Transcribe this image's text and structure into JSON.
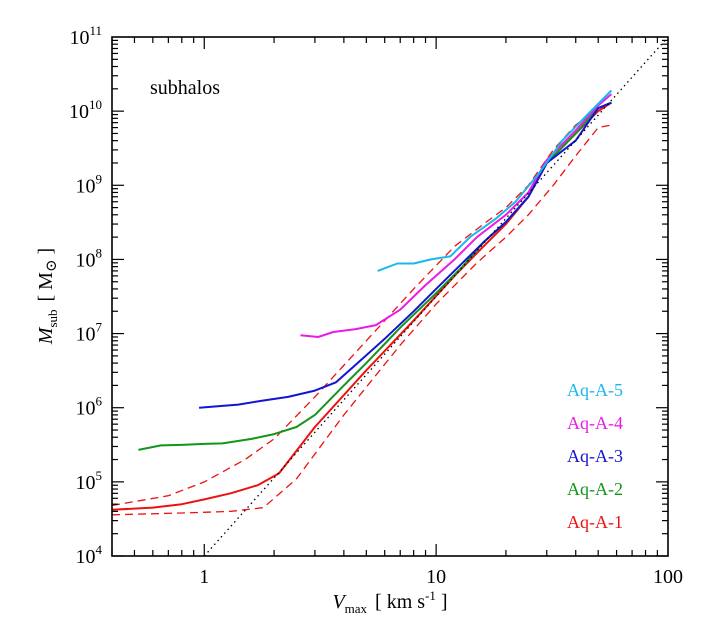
{
  "chart_data": {
    "type": "line",
    "annotation": "subhalos",
    "xlabel": {
      "main": "V",
      "sub": "max",
      "units": "[ km s",
      "units_sup": "-1",
      "units_end": " ]"
    },
    "ylabel": {
      "main": "M",
      "sub": "sub",
      "units": "[ M",
      "units_sym": "⊙",
      "units_end": " ]"
    },
    "xscale": "log",
    "yscale": "log",
    "xlim": [
      0.4,
      100
    ],
    "ylim": [
      10000,
      100000000000
    ],
    "x_ticks": [
      {
        "value": 1,
        "label": "1"
      },
      {
        "value": 10,
        "label": "10"
      },
      {
        "value": 100,
        "label": "100"
      }
    ],
    "y_ticks": [
      {
        "value": 10000,
        "base": "10",
        "exp": "4"
      },
      {
        "value": 100000,
        "base": "10",
        "exp": "5"
      },
      {
        "value": 1000000,
        "base": "10",
        "exp": "6"
      },
      {
        "value": 10000000,
        "base": "10",
        "exp": "7"
      },
      {
        "value": 100000000,
        "base": "10",
        "exp": "8"
      },
      {
        "value": 1000000000,
        "base": "10",
        "exp": "9"
      },
      {
        "value": 10000000000,
        "base": "10",
        "exp": "10"
      },
      {
        "value": 100000000000,
        "base": "10",
        "exp": "11"
      }
    ],
    "legend_position": "bottom-right",
    "legend_order": [
      "Aq-A-5",
      "Aq-A-4",
      "Aq-A-3",
      "Aq-A-2",
      "Aq-A-1"
    ],
    "series": [
      {
        "name": "Aq-A-1",
        "color": "#ee1111",
        "style": "solid",
        "x": [
          0.4,
          0.6,
          0.8,
          1.0,
          1.3,
          1.7,
          2.1,
          3.0,
          5.0,
          8.0,
          12,
          16,
          20,
          25,
          30,
          40,
          50,
          57
        ],
        "y": [
          42000,
          45000,
          50000,
          58000,
          70000,
          90000,
          130000,
          550000,
          3200000,
          15000000,
          60000000,
          150000000,
          300000000,
          700000000,
          2000000000,
          5000000000,
          10000000000,
          13000000000
        ]
      },
      {
        "name": "Aq-A-1 upper",
        "color": "#ee1111",
        "style": "dashed",
        "x": [
          0.4,
          0.7,
          1.0,
          1.5,
          2.0,
          3.0,
          5.0,
          8.0,
          12,
          16,
          20,
          25,
          32,
          40,
          50,
          55
        ],
        "y": [
          48000,
          65000,
          100000,
          200000,
          380000,
          1400000,
          8000000,
          40000000,
          150000000,
          300000000,
          500000000,
          1000000000,
          3000000000,
          6500000000,
          11000000000,
          12500000000
        ]
      },
      {
        "name": "Aq-A-1 lower",
        "color": "#ee1111",
        "style": "dashed",
        "x": [
          0.4,
          0.8,
          1.3,
          1.8,
          2.5,
          4.0,
          7.0,
          10,
          15,
          20,
          25,
          32,
          40,
          50,
          57
        ],
        "y": [
          36000,
          38000,
          40000,
          45000,
          110000,
          800000,
          7000000,
          25000000,
          90000000,
          200000000,
          400000000,
          1000000000,
          2500000000,
          6000000000,
          6500000000
        ]
      },
      {
        "name": "Aq-A-2",
        "color": "#13951c",
        "style": "solid",
        "x": [
          0.52,
          0.65,
          0.8,
          1.0,
          1.2,
          1.6,
          2.0,
          2.5,
          3.0,
          4.0,
          5.0,
          7.0,
          10,
          13,
          16,
          20,
          25,
          30,
          40,
          50,
          57
        ],
        "y": [
          270000,
          310000,
          315000,
          325000,
          330000,
          380000,
          440000,
          550000,
          800000,
          2000000,
          4000000,
          12000000,
          35000000,
          80000000,
          170000000,
          320000000,
          700000000,
          2000000000,
          5000000000,
          11000000000,
          13000000000
        ]
      },
      {
        "name": "Aq-A-3",
        "color": "#1414d2",
        "style": "solid",
        "x": [
          0.95,
          1.4,
          1.8,
          2.3,
          3.0,
          3.7,
          4.5,
          6.0,
          8.0,
          10,
          13,
          16,
          20,
          25,
          30,
          40,
          50,
          57
        ],
        "y": [
          1000000,
          1100000,
          1250000,
          1400000,
          1700000,
          2200000,
          3800000,
          8500000,
          20000000,
          40000000,
          90000000,
          170000000,
          320000000,
          700000000,
          2000000000,
          4000000000,
          11000000000,
          13000000000
        ]
      },
      {
        "name": "Aq-A-4",
        "color": "#e91be9",
        "style": "solid",
        "x": [
          2.6,
          3.1,
          3.6,
          4.5,
          5.5,
          7.0,
          9.0,
          12,
          15,
          20,
          25,
          30,
          40,
          50,
          57
        ],
        "y": [
          9500000,
          9000000,
          10500000,
          11500000,
          13000000,
          21000000,
          45000000,
          100000000,
          200000000,
          400000000,
          800000000,
          2200000000,
          5500000000,
          12000000000,
          17000000000
        ]
      },
      {
        "name": "Aq-A-5",
        "color": "#18b8ea",
        "style": "solid",
        "x": [
          5.6,
          6.8,
          8.0,
          9.5,
          11.5,
          14,
          18,
          22,
          28,
          35,
          45,
          57
        ],
        "y": [
          70000000,
          88000000,
          88000000,
          100000000,
          110000000,
          200000000,
          350000000,
          600000000,
          1500000000,
          4000000000,
          9000000000,
          19000000000
        ]
      },
      {
        "name": "reference",
        "color": "#000000",
        "style": "dotted",
        "x": [
          1.0,
          100
        ],
        "y": [
          10000,
          100000000000
        ]
      }
    ]
  }
}
